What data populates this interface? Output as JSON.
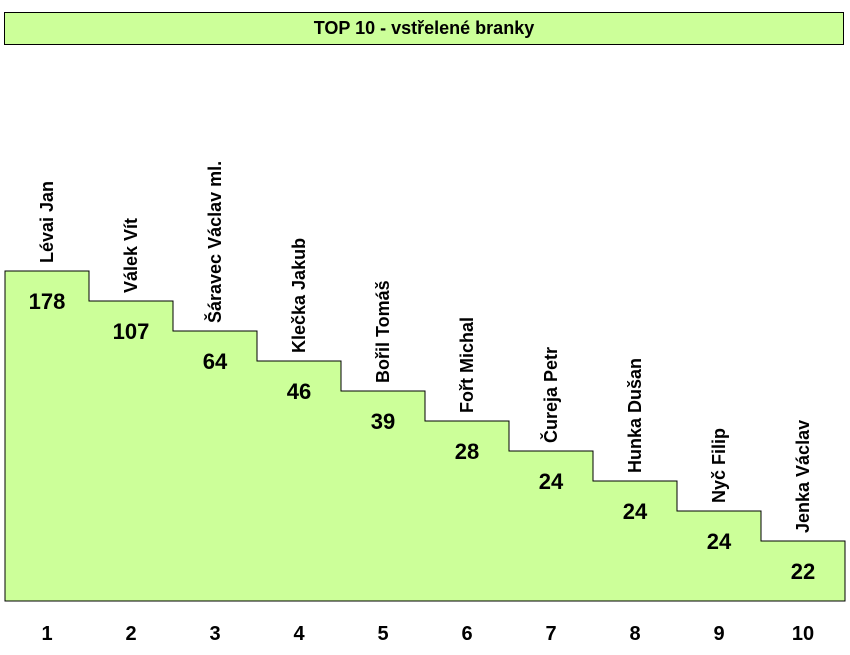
{
  "title": "TOP 10 - vstřelené branky",
  "colors": {
    "fill": "#ccff99",
    "stroke": "#000000"
  },
  "chart_data": {
    "type": "bar",
    "categories": [
      "1",
      "2",
      "3",
      "4",
      "5",
      "6",
      "7",
      "8",
      "9",
      "10"
    ],
    "names": [
      "Lévai Jan",
      "Válek Vít",
      "Šáravec Václav ml.",
      "Klečka Jakub",
      "Bořil Tomáš",
      "Fořt Michal",
      "Čureja Petr",
      "Hunka Dušan",
      "Nyč Filip",
      "Jenka Václav"
    ],
    "values": [
      178,
      107,
      64,
      46,
      39,
      28,
      24,
      24,
      24,
      22
    ],
    "labels": [
      "178",
      "107",
      "64",
      "46",
      "39",
      "28",
      "24",
      "24",
      "24",
      "22"
    ]
  }
}
